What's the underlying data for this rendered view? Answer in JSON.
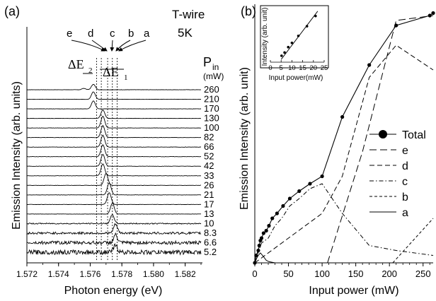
{
  "chart_data": [
    {
      "type": "line",
      "panel": "(a)",
      "sample_label": "T-wire",
      "temperature_label": "5K",
      "xlabel": "Photon energy (eV)",
      "ylabel": "Emission Intensity (arb. units)",
      "xlim": [
        1.572,
        1.583
      ],
      "x_ticks": [
        "1.572",
        "1.574",
        "1.576",
        "1.578",
        "1.580",
        "1.582"
      ],
      "x_tick_values": [
        1.572,
        1.574,
        1.576,
        1.578,
        1.58,
        1.582
      ],
      "power_header": "P",
      "power_header_sub": "in",
      "power_unit": "(mW)",
      "peak_labels": [
        "e",
        "d",
        "c",
        "b",
        "a"
      ],
      "peak_positions": [
        1.5764,
        1.5767,
        1.5771,
        1.5774,
        1.5777
      ],
      "delta_labels": [
        {
          "main": "ΔE",
          "sub": "2"
        },
        {
          "main": "ΔE",
          "sub": "1"
        }
      ],
      "spectra": [
        {
          "power": "260",
          "peak": 1.5762,
          "amp": 0.55
        },
        {
          "power": "210",
          "peak": 1.5762,
          "amp": 0.75
        },
        {
          "power": "170",
          "peak": 1.5762,
          "amp": 0.8
        },
        {
          "power": "130",
          "peak": 1.5768,
          "amp": 0.85
        },
        {
          "power": "100",
          "peak": 1.5768,
          "amp": 1.2
        },
        {
          "power": "82",
          "peak": 1.5768,
          "amp": 1.2
        },
        {
          "power": "66",
          "peak": 1.5768,
          "amp": 1.2
        },
        {
          "power": "52",
          "peak": 1.5768,
          "amp": 1.2
        },
        {
          "power": "42",
          "peak": 1.5768,
          "amp": 1.2
        },
        {
          "power": "33",
          "peak": 1.5768,
          "amp": 1.2
        },
        {
          "power": "26",
          "peak": 1.577,
          "amp": 1.2
        },
        {
          "power": "21",
          "peak": 1.5772,
          "amp": 1.2
        },
        {
          "power": "17",
          "peak": 1.5772,
          "amp": 1.2
        },
        {
          "power": "13",
          "peak": 1.5774,
          "amp": 1.1
        },
        {
          "power": "10",
          "peak": 1.5774,
          "amp": 0.9
        },
        {
          "power": "8.3",
          "peak": 1.5776,
          "amp": 0.9
        },
        {
          "power": "6.6",
          "peak": 1.5776,
          "amp": 0.8
        },
        {
          "power": "5.2",
          "peak": 1.5776,
          "amp": 0.7
        }
      ]
    },
    {
      "type": "line",
      "panel": "(b)",
      "xlabel": "Input power (mW)",
      "ylabel": "Emission Intensity (arb. unit)",
      "xlim": [
        0,
        265
      ],
      "x_ticks": [
        "0",
        "50",
        "100",
        "150",
        "200",
        "250"
      ],
      "x_tick_values": [
        0,
        50,
        100,
        150,
        200,
        250
      ],
      "legend_position": "right",
      "series": [
        {
          "name": "Total",
          "style": "line-marker",
          "x": [
            0,
            2,
            5.2,
            6.6,
            8.3,
            10,
            13,
            17,
            21,
            26,
            33,
            42,
            52,
            66,
            82,
            100,
            130,
            170,
            210,
            260,
            265
          ],
          "y": [
            0,
            0.03,
            0.05,
            0.07,
            0.09,
            0.1,
            0.12,
            0.13,
            0.15,
            0.18,
            0.2,
            0.23,
            0.26,
            0.29,
            0.32,
            0.35,
            0.59,
            0.8,
            0.96,
            1.0,
            1.01
          ]
        },
        {
          "name": "e",
          "style": "dash-long",
          "x": [
            108,
            160,
            210,
            265
          ],
          "y": [
            0,
            0.45,
            0.98,
            1.0
          ]
        },
        {
          "name": "d",
          "style": "dash-medium",
          "x": [
            0,
            100,
            130,
            170,
            210,
            265
          ],
          "y": [
            0,
            0.2,
            0.35,
            0.75,
            0.88,
            0.78
          ]
        },
        {
          "name": "c",
          "style": "dash-dot",
          "x": [
            0,
            10,
            20,
            30,
            40,
            52,
            66,
            82,
            100,
            130,
            170,
            210,
            265
          ],
          "y": [
            0,
            0.08,
            0.1,
            0.15,
            0.18,
            0.23,
            0.26,
            0.3,
            0.32,
            0.2,
            0.07,
            0.05,
            0.03
          ]
        },
        {
          "name": "b",
          "style": "dash-short",
          "x": [
            205,
            265
          ],
          "y": [
            0,
            0.18
          ]
        },
        {
          "name": "a",
          "style": "solid",
          "x": [
            0,
            3,
            5.2,
            6.6,
            8.3,
            10,
            13,
            17,
            21,
            30
          ],
          "y": [
            0,
            0.02,
            0.03,
            0.035,
            0.04,
            0.035,
            0.025,
            0.01,
            0.005,
            0
          ]
        }
      ],
      "inset": {
        "xlabel": "Input power(mW)",
        "ylabel": "Intensity (arb. unit)",
        "x_ticks": [
          "0",
          "5",
          "10",
          "15",
          "20",
          "25"
        ],
        "x_tick_values": [
          0,
          5,
          10,
          15,
          20,
          25
        ],
        "xlim": [
          0,
          25
        ],
        "points": {
          "x": [
            5.2,
            6.6,
            8.3,
            10,
            13,
            17,
            21
          ],
          "y": [
            0.12,
            0.18,
            0.28,
            0.36,
            0.49,
            0.67,
            0.86
          ]
        },
        "fit": {
          "x": [
            5,
            22
          ],
          "y": [
            0.05,
            0.95
          ]
        }
      }
    }
  ]
}
